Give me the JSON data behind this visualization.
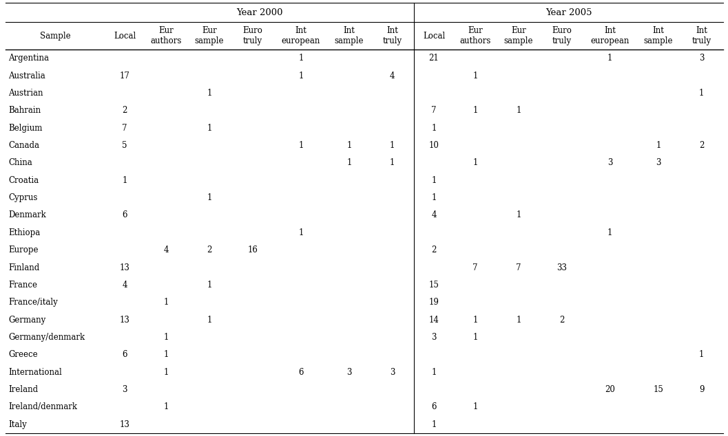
{
  "year2000_header": "Year 2000",
  "year2005_header": "Year 2005",
  "col_headers": [
    "Sample",
    "Local",
    "Eur\nauthors",
    "Eur\nsample",
    "Euro\ntruly",
    "Int\neuropean",
    "Int\nsample",
    "Int\ntruly",
    "Local",
    "Eur\nauthors",
    "Eur\nsample",
    "Euro\ntruly",
    "Int\neuropean",
    "Int\nsample",
    "Int\ntruly"
  ],
  "rows": [
    [
      "Argentina",
      "",
      "",
      "",
      "",
      "1",
      "",
      "",
      "21",
      "",
      "",
      "",
      "1",
      "",
      "3"
    ],
    [
      "Australia",
      "17",
      "",
      "",
      "",
      "1",
      "",
      "4",
      "",
      "1",
      "",
      "",
      "",
      "",
      ""
    ],
    [
      "Austrian",
      "",
      "",
      "1",
      "",
      "",
      "",
      "",
      "",
      "",
      "",
      "",
      "",
      "",
      "1"
    ],
    [
      "Bahrain",
      "2",
      "",
      "",
      "",
      "",
      "",
      "",
      "7",
      "1",
      "1",
      "",
      "",
      "",
      ""
    ],
    [
      "Belgium",
      "7",
      "",
      "1",
      "",
      "",
      "",
      "",
      "1",
      "",
      "",
      "",
      "",
      "",
      ""
    ],
    [
      "Canada",
      "5",
      "",
      "",
      "",
      "1",
      "1",
      "1",
      "10",
      "",
      "",
      "",
      "",
      "1",
      "2"
    ],
    [
      "China",
      "",
      "",
      "",
      "",
      "",
      "1",
      "1",
      "",
      "1",
      "",
      "",
      "3",
      "3",
      ""
    ],
    [
      "Croatia",
      "1",
      "",
      "",
      "",
      "",
      "",
      "",
      "1",
      "",
      "",
      "",
      "",
      "",
      ""
    ],
    [
      "Cyprus",
      "",
      "",
      "1",
      "",
      "",
      "",
      "",
      "1",
      "",
      "",
      "",
      "",
      "",
      ""
    ],
    [
      "Denmark",
      "6",
      "",
      "",
      "",
      "",
      "",
      "",
      "4",
      "",
      "1",
      "",
      "",
      "",
      ""
    ],
    [
      "Ethiopa",
      "",
      "",
      "",
      "",
      "1",
      "",
      "",
      "",
      "",
      "",
      "",
      "1",
      "",
      ""
    ],
    [
      "Europe",
      "",
      "4",
      "2",
      "16",
      "",
      "",
      "",
      "2",
      "",
      "",
      "",
      "",
      "",
      ""
    ],
    [
      "Finland",
      "13",
      "",
      "",
      "",
      "",
      "",
      "",
      "",
      "7",
      "7",
      "33",
      "",
      "",
      ""
    ],
    [
      "France",
      "4",
      "",
      "1",
      "",
      "",
      "",
      "",
      "15",
      "",
      "",
      "",
      "",
      "",
      ""
    ],
    [
      "France/italy",
      "",
      "1",
      "",
      "",
      "",
      "",
      "",
      "19",
      "",
      "",
      "",
      "",
      "",
      ""
    ],
    [
      "Germany",
      "13",
      "",
      "1",
      "",
      "",
      "",
      "",
      "14",
      "1",
      "1",
      "2",
      "",
      "",
      ""
    ],
    [
      "Germany/denmark",
      "",
      "1",
      "",
      "",
      "",
      "",
      "",
      "3",
      "1",
      "",
      "",
      "",
      "",
      ""
    ],
    [
      "Greece",
      "6",
      "1",
      "",
      "",
      "",
      "",
      "",
      "",
      "",
      "",
      "",
      "",
      "",
      "1"
    ],
    [
      "International",
      "",
      "1",
      "",
      "",
      "6",
      "3",
      "3",
      "1",
      "",
      "",
      "",
      "",
      "",
      ""
    ],
    [
      "Ireland",
      "3",
      "",
      "",
      "",
      "",
      "",
      "",
      "",
      "",
      "",
      "",
      "20",
      "15",
      "9"
    ],
    [
      "Ireland/denmark",
      "",
      "1",
      "",
      "",
      "",
      "",
      "",
      "6",
      "1",
      "",
      "",
      "",
      "",
      ""
    ],
    [
      "Italy",
      "13",
      "",
      "",
      "",
      "",
      "",
      "",
      "1",
      "",
      "",
      "",
      "",
      "",
      ""
    ]
  ],
  "bg_color": "#ffffff",
  "text_color": "#000000",
  "header_fontsize": 8.5,
  "cell_fontsize": 8.5,
  "title_fontsize": 9.5,
  "col_widths_rel": [
    1.45,
    0.58,
    0.63,
    0.63,
    0.63,
    0.78,
    0.63,
    0.63,
    0.58,
    0.63,
    0.63,
    0.63,
    0.78,
    0.63,
    0.63
  ]
}
